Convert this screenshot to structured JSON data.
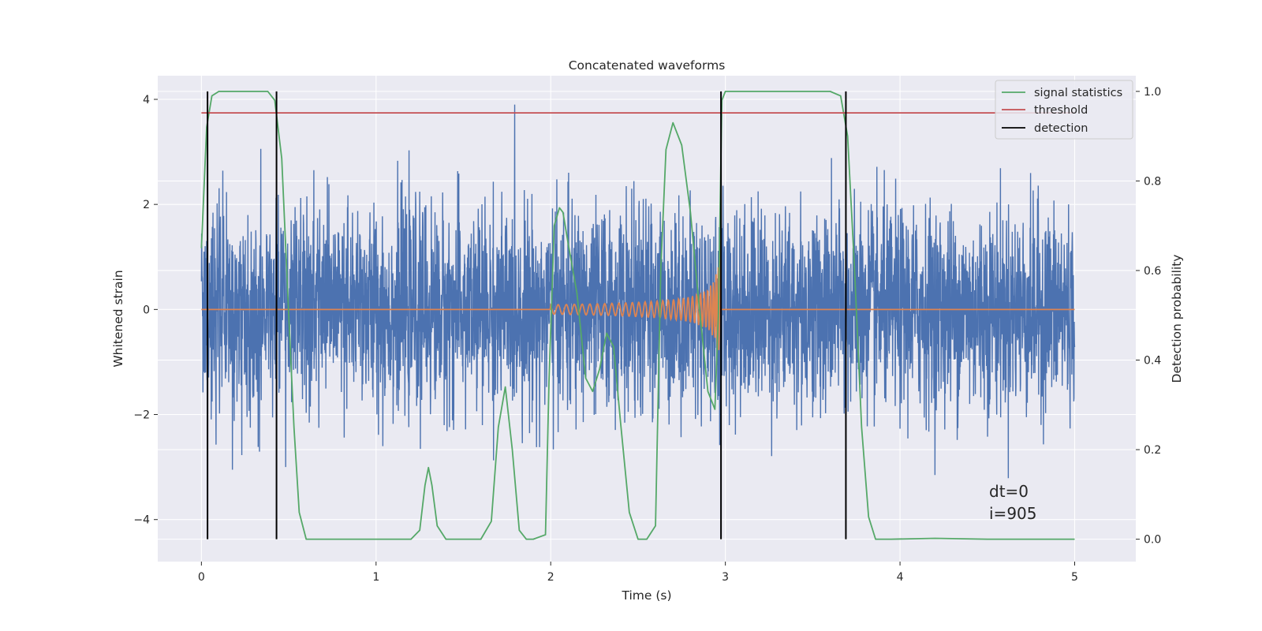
{
  "chart_data": {
    "type": "line",
    "title": "Concatenated waveforms",
    "xlabel": "Time (s)",
    "ylabel": "Whitened strain",
    "y2label": "Detection probability",
    "xlim": [
      -0.25,
      5.35
    ],
    "ylim": [
      -4.8,
      4.45
    ],
    "y2lim": [
      -0.05,
      1.035
    ],
    "x_ticks": [
      0,
      1,
      2,
      3,
      4,
      5
    ],
    "x_tick_labels": [
      "0",
      "1",
      "2",
      "3",
      "4",
      "5"
    ],
    "y_ticks": [
      -4,
      -2,
      0,
      2,
      4
    ],
    "y_tick_labels": [
      "−4",
      "−2",
      "0",
      "2",
      "4"
    ],
    "y2_ticks": [
      0.0,
      0.2,
      0.4,
      0.6,
      0.8,
      1.0
    ],
    "y2_tick_labels": [
      "0.0",
      "0.2",
      "0.4",
      "0.6",
      "0.8",
      "1.0"
    ],
    "grid": true,
    "legend_position": "top-right",
    "colors": {
      "background": "#eaeaf2",
      "grid": "#ffffff",
      "strain": "#4c72b0",
      "template": "#dd8452",
      "signal_statistics": "#55a868",
      "threshold": "#c44e52",
      "detection": "#000000"
    },
    "legend": [
      "signal statistics",
      "threshold",
      "detection"
    ],
    "series": [
      {
        "name": "signal statistics",
        "axis": "right",
        "x": [
          0.0,
          0.03,
          0.06,
          0.1,
          0.38,
          0.42,
          0.46,
          0.5,
          0.53,
          0.56,
          0.6,
          0.8,
          1.2,
          1.25,
          1.28,
          1.3,
          1.32,
          1.35,
          1.4,
          1.6,
          1.66,
          1.7,
          1.74,
          1.78,
          1.82,
          1.86,
          1.9,
          1.97,
          1.99,
          2.02,
          2.05,
          2.07,
          2.1,
          2.15,
          2.2,
          2.24,
          2.28,
          2.32,
          2.36,
          2.4,
          2.45,
          2.5,
          2.55,
          2.6,
          2.63,
          2.66,
          2.7,
          2.75,
          2.8,
          2.85,
          2.9,
          2.94,
          2.96,
          2.98,
          3.0,
          3.05,
          3.6,
          3.66,
          3.7,
          3.74,
          3.78,
          3.82,
          3.86,
          3.95,
          4.2,
          4.5,
          5.0
        ],
        "values": [
          0.65,
          0.92,
          0.99,
          1.0,
          1.0,
          0.98,
          0.85,
          0.5,
          0.25,
          0.06,
          0.0,
          0.0,
          0.0,
          0.02,
          0.12,
          0.16,
          0.12,
          0.03,
          0.0,
          0.0,
          0.04,
          0.25,
          0.34,
          0.2,
          0.02,
          0.0,
          0.0,
          0.01,
          0.35,
          0.7,
          0.74,
          0.73,
          0.66,
          0.55,
          0.36,
          0.33,
          0.38,
          0.46,
          0.43,
          0.26,
          0.06,
          0.0,
          0.0,
          0.03,
          0.6,
          0.87,
          0.93,
          0.88,
          0.73,
          0.52,
          0.33,
          0.29,
          0.5,
          0.98,
          1.0,
          1.0,
          1.0,
          0.99,
          0.9,
          0.6,
          0.25,
          0.05,
          0.0,
          0.0,
          0.002,
          0.0,
          0.0
        ]
      },
      {
        "name": "threshold",
        "axis": "right",
        "x": [
          0.0,
          5.0
        ],
        "values": [
          0.952,
          0.952
        ]
      },
      {
        "name": "detection",
        "axis": "right",
        "x": [
          0.035,
          0.43,
          2.975,
          3.69
        ],
        "values": [
          1.0,
          1.0,
          1.0,
          1.0
        ]
      }
    ],
    "annotations": [
      "dt=0",
      "i=905"
    ]
  }
}
